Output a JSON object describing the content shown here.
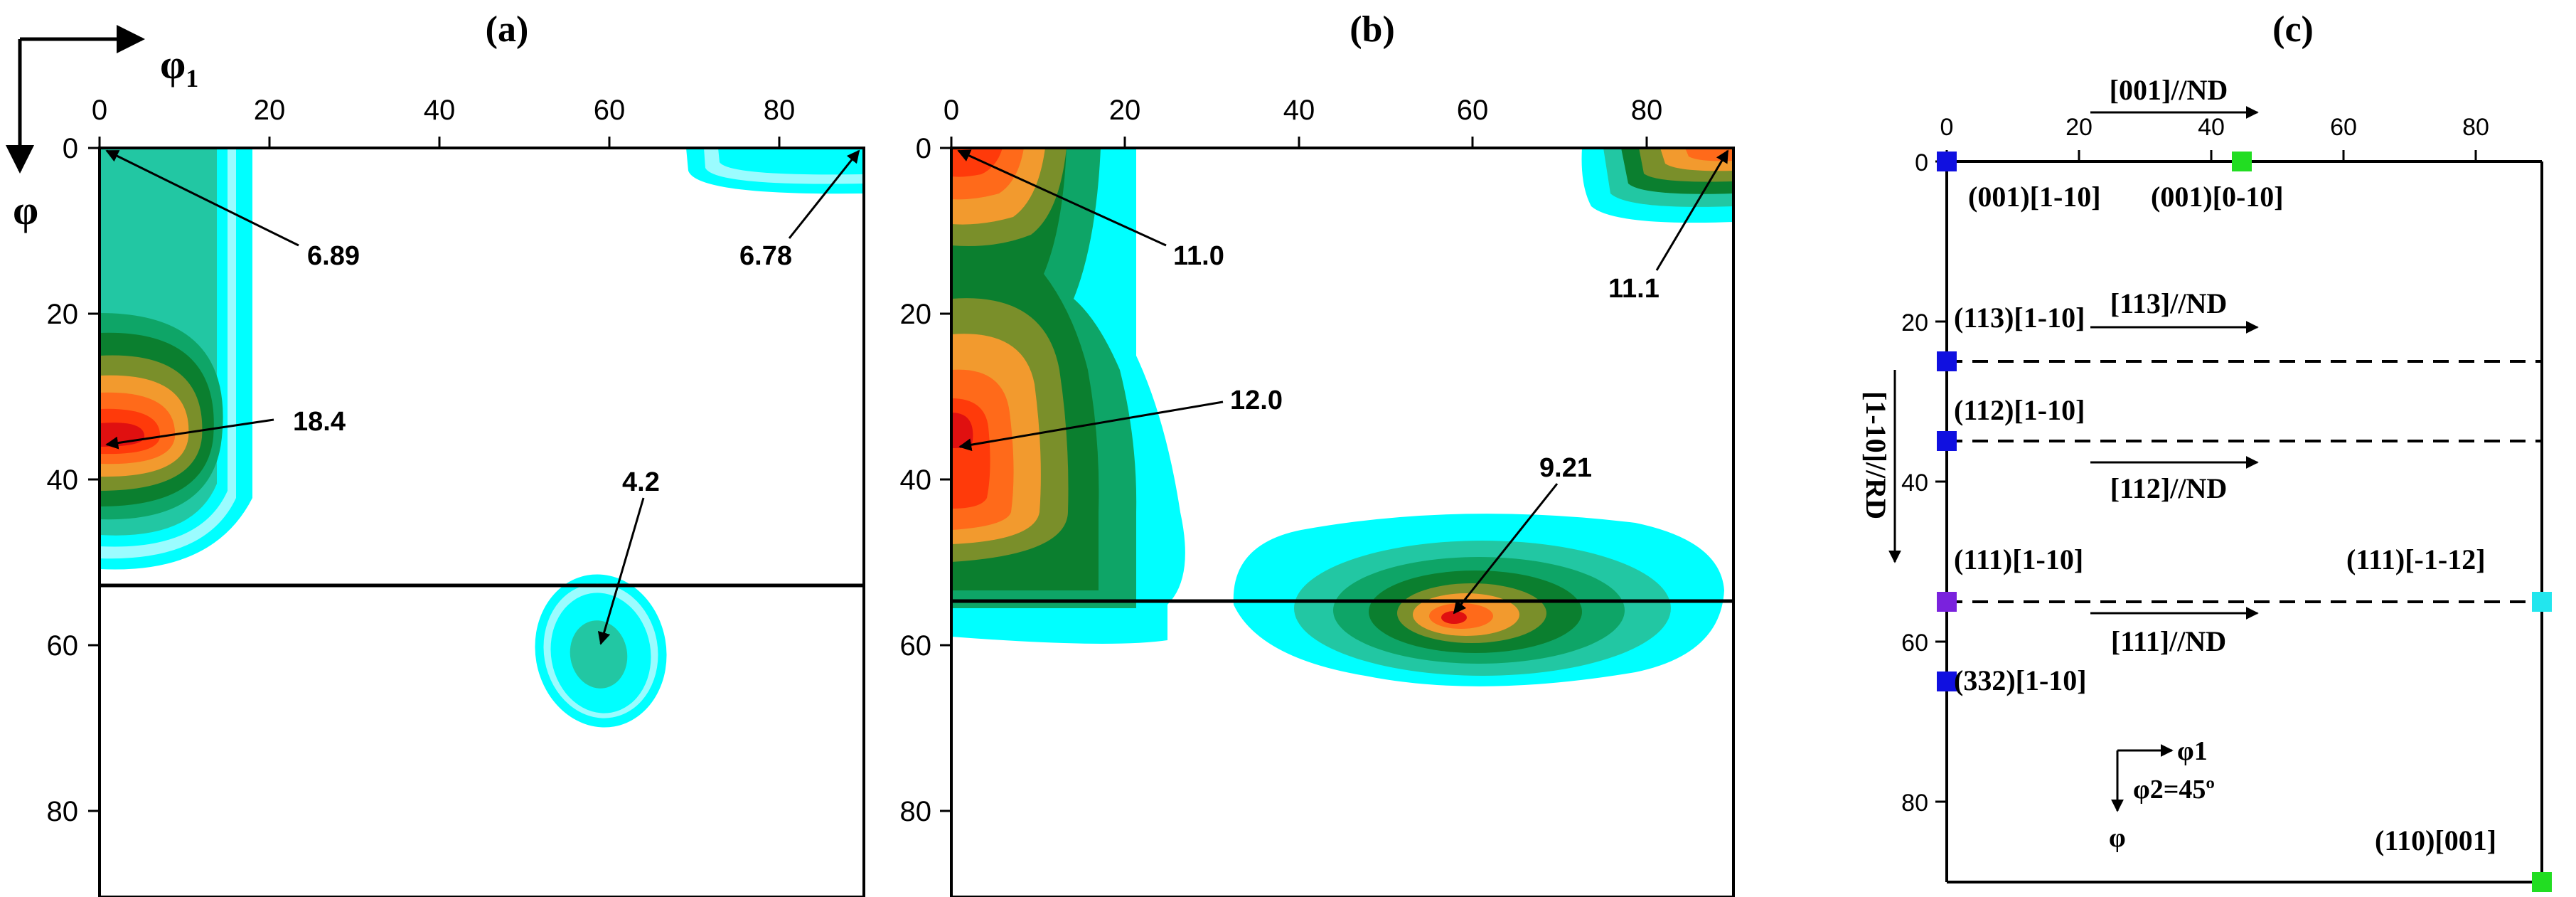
{
  "axis_corner": {
    "x_symbol": "φ",
    "x_sub": "1",
    "y_symbol": "φ"
  },
  "panels": [
    {
      "id": "a",
      "label": "(a)",
      "x_ticks": [
        "0",
        "20",
        "40",
        "60",
        "80"
      ],
      "y_ticks": [
        "0",
        "20",
        "40",
        "60",
        "80"
      ],
      "annotations": [
        "6.89",
        "6.78",
        "18.4",
        "4.2"
      ]
    },
    {
      "id": "b",
      "label": "(b)",
      "x_ticks": [
        "0",
        "20",
        "40",
        "60",
        "80"
      ],
      "y_ticks": [
        "0",
        "20",
        "40",
        "60",
        "80"
      ],
      "annotations": [
        "11.0",
        "11.1",
        "12.0",
        "9.21"
      ]
    }
  ],
  "panel_c": {
    "label": "(c)",
    "x_ticks": [
      "0",
      "20",
      "40",
      "60",
      "80"
    ],
    "y_ticks": [
      "0",
      "20",
      "40",
      "60",
      "80"
    ],
    "fibers": [
      "[001]//ND",
      "[113]//ND",
      "[112]//ND",
      "[111]//ND"
    ],
    "rd_label": "[1-10]//RD",
    "orientations": [
      {
        "label": "(001)[1-10]",
        "phi1": 0,
        "phi": 0,
        "color": "#1010e0"
      },
      {
        "label": "(001)[0-10]",
        "phi1": 45,
        "phi": 0,
        "color": "#22dd22"
      },
      {
        "label": "(113)[1-10]",
        "phi1": 0,
        "phi": 25,
        "color": "#1010e0"
      },
      {
        "label": "(112)[1-10]",
        "phi1": 0,
        "phi": 35,
        "color": "#1010e0"
      },
      {
        "label": "(111)[1-10]",
        "phi1": 0,
        "phi": 55,
        "color": "#7a22dd"
      },
      {
        "label": "(111)[-1-12]",
        "phi1": 90,
        "phi": 55,
        "color": "#22e6ee"
      },
      {
        "label": "(332)[1-10]",
        "phi1": 0,
        "phi": 65,
        "color": "#1010e0"
      },
      {
        "label": "(110)[001]",
        "phi1": 90,
        "phi": 90,
        "color": "#22dd22"
      }
    ],
    "legend": {
      "phi1": "φ1",
      "phi2": "φ2=45º",
      "phi": "φ"
    }
  },
  "colors": {
    "c1": "#00ffff",
    "c2": "#22c7a3",
    "c3": "#0ea567",
    "c4": "#0b7f2f",
    "c5": "#7a8f2a",
    "c6": "#f29a2e",
    "c7": "#ff6a1a",
    "c8": "#ff3a0a",
    "c9": "#e01010"
  }
}
